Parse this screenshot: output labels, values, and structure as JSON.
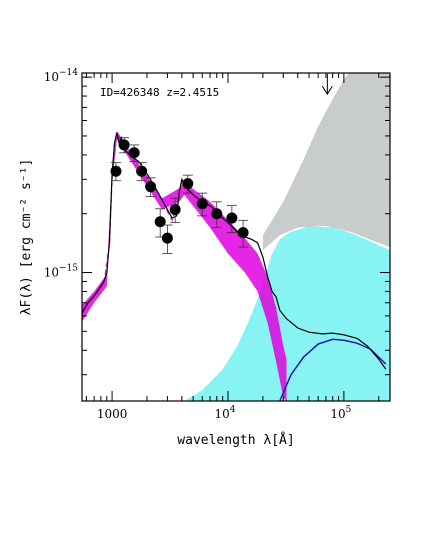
{
  "chart_data": {
    "type": "scatter",
    "xlabel": "wavelength λ[Å]",
    "ylabel": "λF(λ) [erg cm⁻² s⁻¹]",
    "xscale": "log",
    "yscale": "log",
    "xlim": [
      550,
      250000
    ],
    "ylim": [
      2.2e-16,
      1.05e-14
    ],
    "annotation": "ID=426348 z=2.4515",
    "x_ticks": [
      {
        "value": 1000,
        "label": "1000",
        "sup": ""
      },
      {
        "value": 10000,
        "label": "10",
        "sup": "4"
      },
      {
        "value": 100000,
        "label": "10",
        "sup": "5"
      }
    ],
    "y_ticks": [
      {
        "value": 1e-14,
        "label": "10",
        "sup": "−14"
      },
      {
        "value": 1e-15,
        "label": "10",
        "sup": "−15"
      }
    ],
    "photometry": [
      {
        "x": 1080,
        "y": 3.3e-15,
        "err": 3.5e-16
      },
      {
        "x": 1270,
        "y": 4.5e-15,
        "err": 4e-16
      },
      {
        "x": 1550,
        "y": 4.1e-15,
        "err": 4e-16
      },
      {
        "x": 1800,
        "y": 3.3e-15,
        "err": 3.5e-16
      },
      {
        "x": 2150,
        "y": 2.75e-15,
        "err": 3e-16
      },
      {
        "x": 2600,
        "y": 1.82e-15,
        "err": 3e-16
      },
      {
        "x": 3000,
        "y": 1.5e-15,
        "err": 2.5e-16
      },
      {
        "x": 3500,
        "y": 2.1e-15,
        "err": 3e-16
      },
      {
        "x": 4500,
        "y": 2.85e-15,
        "err": 3e-16
      },
      {
        "x": 6000,
        "y": 2.25e-15,
        "err": 3e-16
      },
      {
        "x": 8000,
        "y": 2e-15,
        "err": 3e-16
      },
      {
        "x": 10800,
        "y": 1.9e-15,
        "err": 3e-16
      },
      {
        "x": 13500,
        "y": 1.6e-15,
        "err": 2.5e-16
      }
    ],
    "upper_limit": {
      "x": 72000,
      "y": 1e-14
    },
    "total_model": [
      [
        550,
        6.2e-16
      ],
      [
        620,
        7e-16
      ],
      [
        700,
        7.6e-16
      ],
      [
        780,
        8.3e-16
      ],
      [
        850,
        9e-16
      ],
      [
        900,
        1e-15
      ],
      [
        950,
        1.45e-15
      ],
      [
        1000,
        3.2e-15
      ],
      [
        1050,
        4.6e-15
      ],
      [
        1100,
        5.2e-15
      ],
      [
        1150,
        4.6e-15
      ],
      [
        1200,
        4.9e-15
      ],
      [
        1300,
        4.2e-15
      ],
      [
        1500,
        3.9e-15
      ],
      [
        1700,
        3.7e-15
      ],
      [
        2000,
        3.2e-15
      ],
      [
        2300,
        2.8e-15
      ],
      [
        2700,
        2.35e-15
      ],
      [
        3000,
        2.1e-15
      ],
      [
        3300,
        1.9e-15
      ],
      [
        3600,
        1.95e-15
      ],
      [
        3800,
        2.6e-15
      ],
      [
        4000,
        3e-15
      ],
      [
        4300,
        2.75e-15
      ],
      [
        5000,
        2.5e-15
      ],
      [
        6000,
        2.3e-15
      ],
      [
        7000,
        2.2e-15
      ],
      [
        8000,
        2.05e-15
      ],
      [
        9000,
        1.9e-15
      ],
      [
        10000,
        1.8e-15
      ],
      [
        12000,
        1.62e-15
      ],
      [
        14000,
        1.52e-15
      ],
      [
        16000,
        1.48e-15
      ],
      [
        18000,
        1.42e-15
      ],
      [
        20000,
        1.2e-15
      ],
      [
        22000,
        9.5e-16
      ],
      [
        24000,
        8e-16
      ],
      [
        26000,
        7.5e-16
      ],
      [
        28000,
        6.4e-16
      ],
      [
        32000,
        5.8e-16
      ],
      [
        40000,
        5.2e-16
      ],
      [
        50000,
        4.95e-16
      ],
      [
        65000,
        4.85e-16
      ],
      [
        80000,
        4.9e-16
      ],
      [
        100000,
        4.8e-16
      ],
      [
        130000,
        4.6e-16
      ],
      [
        160000,
        4.2e-16
      ],
      [
        200000,
        3.6e-16
      ],
      [
        230000,
        3.2e-16
      ]
    ],
    "galaxy_model": [
      [
        550,
        6e-16
      ],
      [
        700,
        7.4e-16
      ],
      [
        850,
        8.8e-16
      ],
      [
        950,
        1.4e-15
      ],
      [
        1000,
        3.1e-15
      ],
      [
        1100,
        5.1e-15
      ],
      [
        1200,
        4.8e-15
      ],
      [
        1500,
        3.8e-15
      ],
      [
        2000,
        3.1e-15
      ],
      [
        2700,
        2.3e-15
      ],
      [
        3300,
        1.85e-15
      ],
      [
        3800,
        2.55e-15
      ],
      [
        4000,
        2.95e-15
      ],
      [
        5000,
        2.45e-15
      ],
      [
        7000,
        2.15e-15
      ],
      [
        10000,
        1.75e-15
      ],
      [
        14000,
        1.45e-15
      ],
      [
        18000,
        1.2e-15
      ],
      [
        21000,
        9e-16
      ],
      [
        24000,
        6.2e-16
      ],
      [
        27000,
        4.2e-16
      ],
      [
        30000,
        2.6e-16
      ],
      [
        32000,
        2.2e-16
      ]
    ],
    "agn_model": [
      [
        28000,
        2.2e-16
      ],
      [
        35000,
        3e-16
      ],
      [
        45000,
        3.7e-16
      ],
      [
        60000,
        4.3e-16
      ],
      [
        80000,
        4.55e-16
      ],
      [
        100000,
        4.5e-16
      ],
      [
        130000,
        4.35e-16
      ],
      [
        170000,
        4.05e-16
      ],
      [
        230000,
        3.4e-16
      ]
    ],
    "galaxy_band": {
      "upper": [
        [
          550,
          6.8e-16
        ],
        [
          700,
          8e-16
        ],
        [
          900,
          9.8e-16
        ],
        [
          1000,
          3.4e-15
        ],
        [
          1100,
          5.3e-15
        ],
        [
          1500,
          4e-15
        ],
        [
          2700,
          2.4e-15
        ],
        [
          3800,
          2.7e-15
        ],
        [
          4200,
          2.9e-15
        ],
        [
          7000,
          2.3e-15
        ],
        [
          10000,
          1.85e-15
        ],
        [
          14000,
          1.5e-15
        ],
        [
          18000,
          1.25e-15
        ],
        [
          22000,
          9.5e-16
        ],
        [
          26000,
          6.6e-16
        ],
        [
          30000,
          4.2e-16
        ],
        [
          32000,
          3.6e-16
        ]
      ],
      "lower": [
        [
          550,
          5.6e-16
        ],
        [
          700,
          7e-16
        ],
        [
          900,
          8.5e-16
        ],
        [
          1000,
          2.9e-15
        ],
        [
          1100,
          4.8e-15
        ],
        [
          1500,
          3.6e-15
        ],
        [
          2700,
          2.1e-15
        ],
        [
          3800,
          2.3e-15
        ],
        [
          4200,
          2.5e-15
        ],
        [
          7000,
          1.7e-15
        ],
        [
          10000,
          1.25e-15
        ],
        [
          14000,
          1e-15
        ],
        [
          18000,
          8e-16
        ],
        [
          22000,
          5.5e-16
        ],
        [
          26000,
          3.5e-16
        ],
        [
          30000,
          2.3e-16
        ],
        [
          32000,
          2.2e-16
        ]
      ]
    },
    "cyan_band": {
      "upper": [
        [
          4200,
          2.2e-16
        ],
        [
          6000,
          2.5e-16
        ],
        [
          9000,
          3.2e-16
        ],
        [
          12000,
          4.2e-16
        ],
        [
          15000,
          5.6e-16
        ],
        [
          18000,
          7.3e-16
        ],
        [
          21000,
          9.6e-16
        ],
        [
          24000,
          1.25e-15
        ],
        [
          28000,
          1.48e-15
        ],
        [
          35000,
          1.62e-15
        ],
        [
          50000,
          1.72e-15
        ],
        [
          80000,
          1.7e-15
        ],
        [
          120000,
          1.58e-15
        ],
        [
          180000,
          1.42e-15
        ],
        [
          250000,
          1.3e-15
        ]
      ],
      "lower": [
        [
          4200,
          2.2e-16
        ],
        [
          250000,
          2.2e-16
        ]
      ]
    },
    "grey_band": {
      "upper": [
        [
          20000,
          1.55e-15
        ],
        [
          30000,
          2.3e-15
        ],
        [
          45000,
          3.8e-15
        ],
        [
          60000,
          5.6e-15
        ],
        [
          80000,
          7.7e-15
        ],
        [
          100000,
          9.7e-15
        ],
        [
          110000,
          1.05e-14
        ],
        [
          250000,
          1.05e-14
        ]
      ],
      "lower": [
        [
          20000,
          1.3e-15
        ],
        [
          28000,
          1.55e-15
        ],
        [
          40000,
          1.7e-15
        ],
        [
          70000,
          1.73e-15
        ],
        [
          120000,
          1.6e-15
        ],
        [
          180000,
          1.45e-15
        ],
        [
          250000,
          1.35e-15
        ]
      ]
    },
    "colors": {
      "total": "#000000",
      "galaxy": "#cc33cc",
      "galaxy_band": "#e000e0",
      "agn": "#1a1aaa",
      "cyan": "#88f3f3",
      "grey": "#c8cccc",
      "points": "#000000"
    }
  }
}
